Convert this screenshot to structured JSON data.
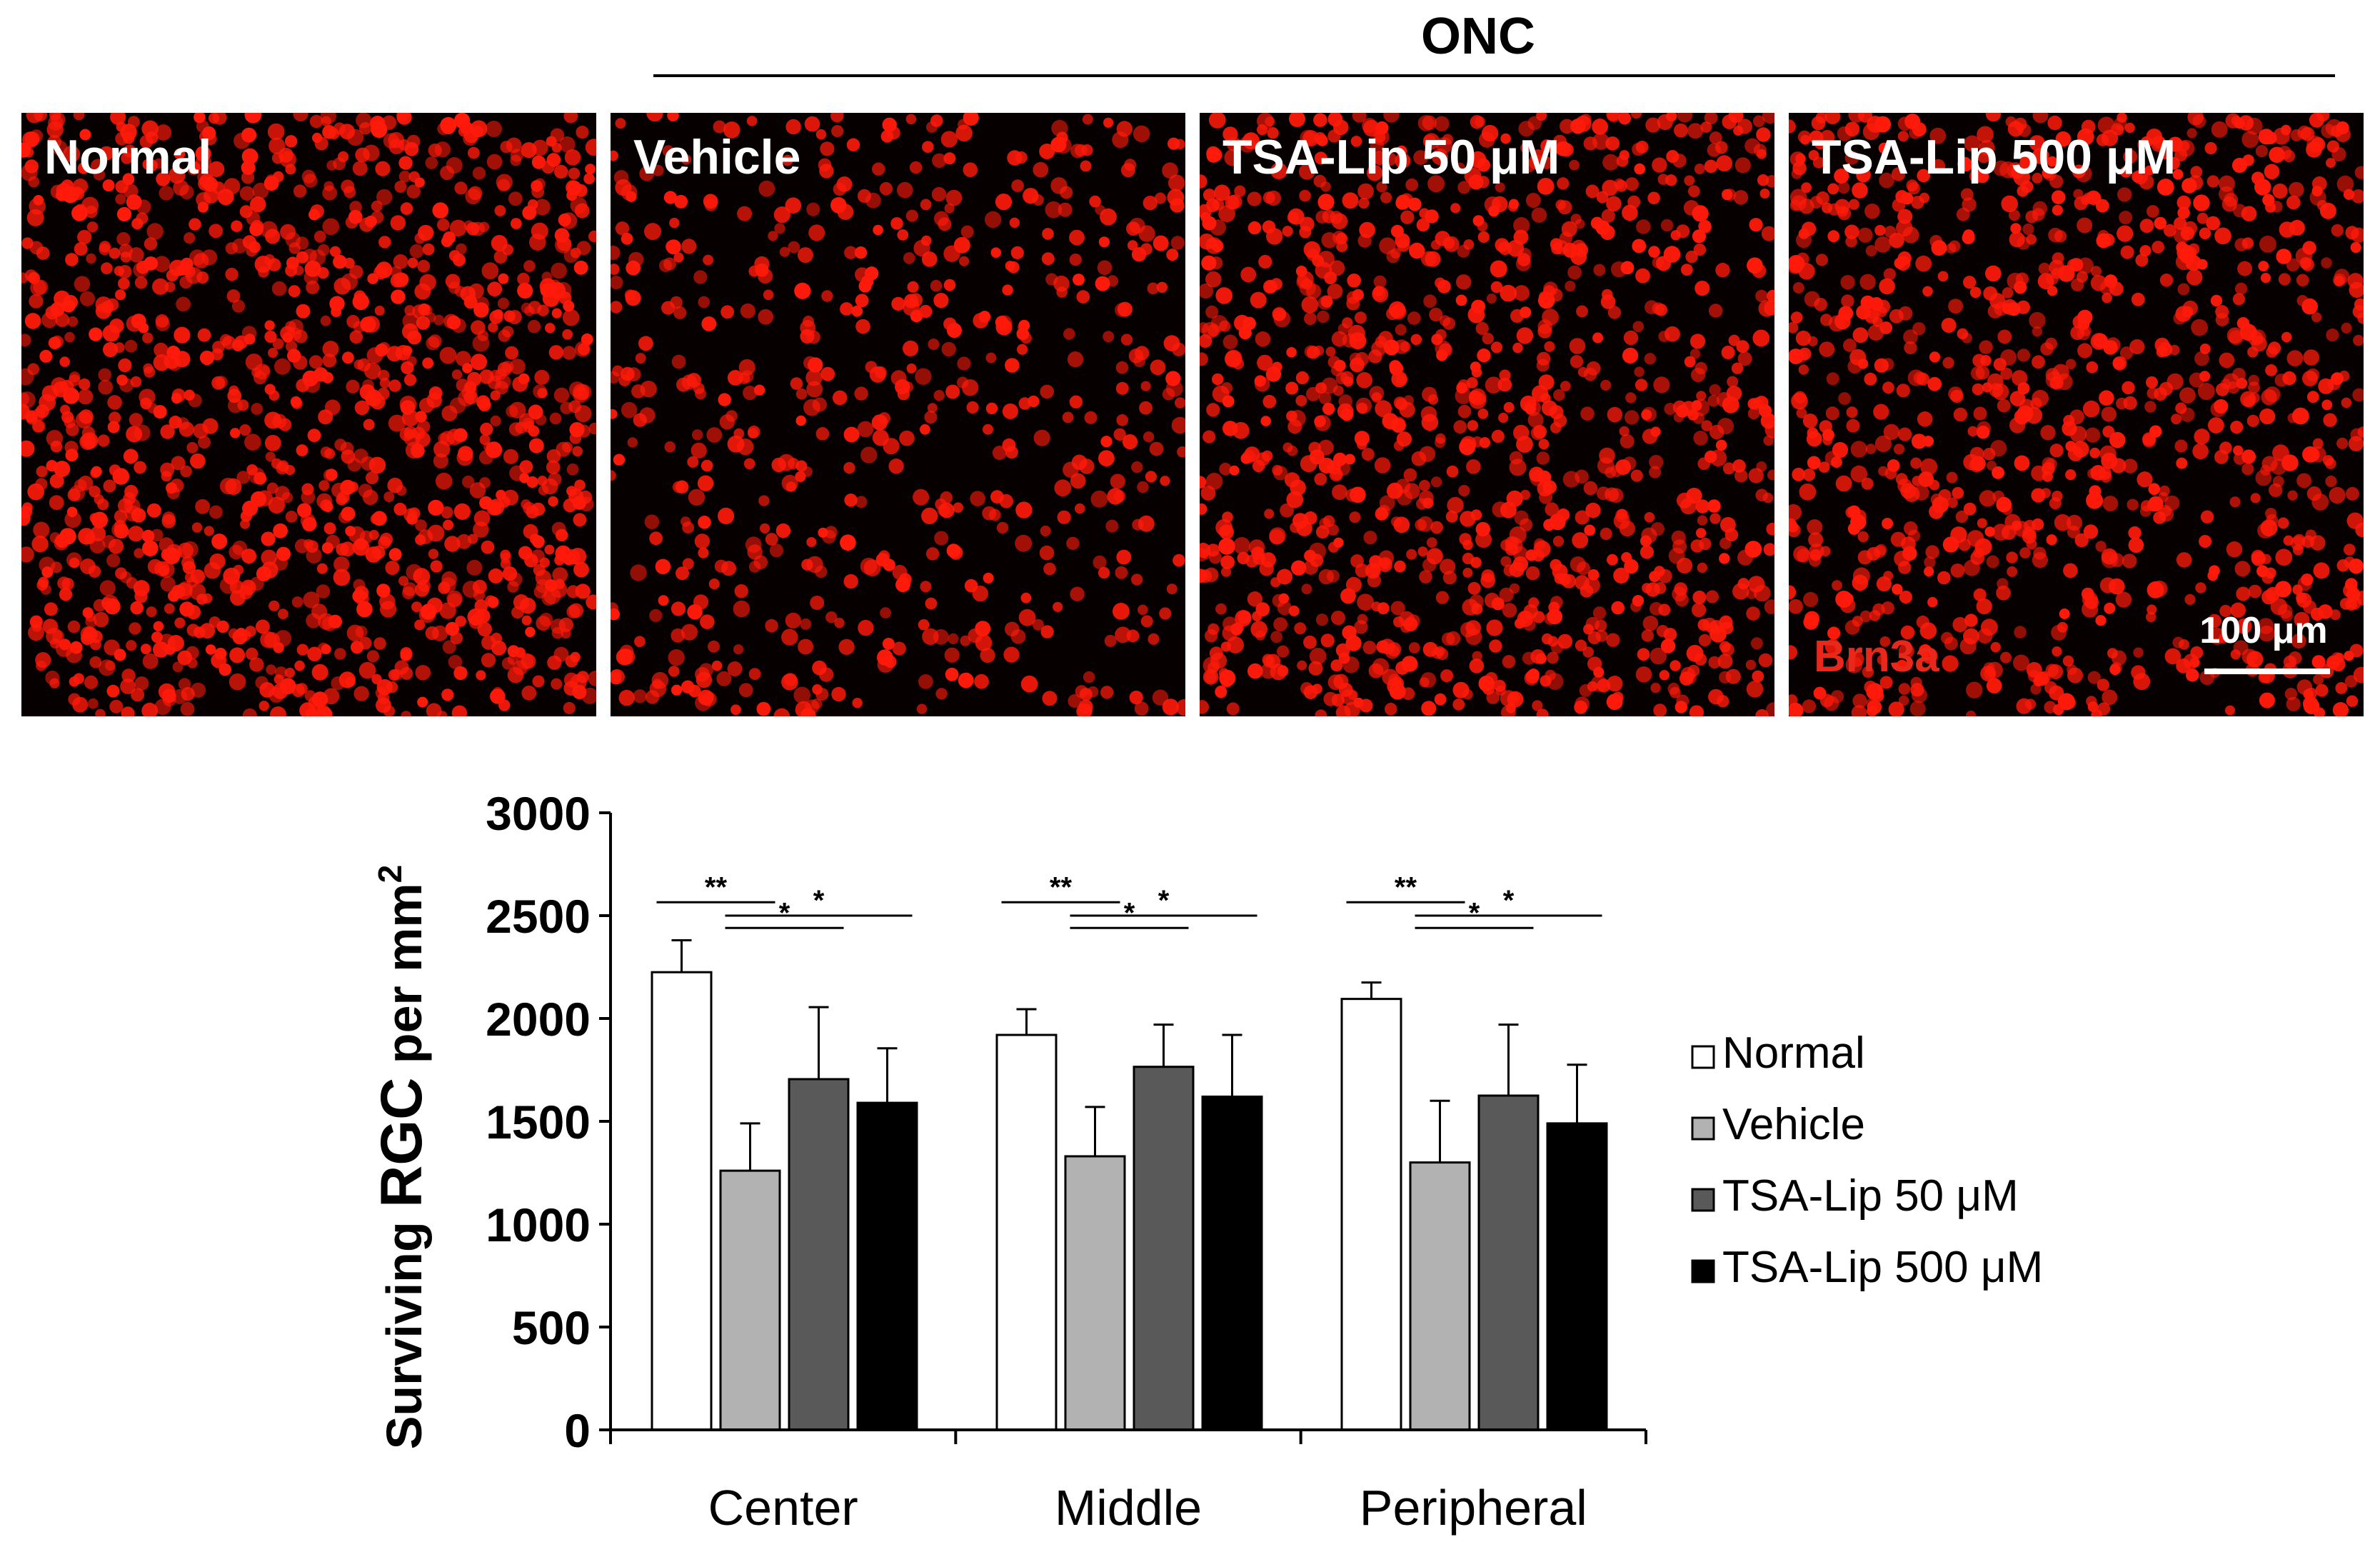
{
  "header": {
    "group_label": "ONC"
  },
  "panels": [
    {
      "label": "Normal",
      "density": 1.0,
      "color": "#ff1a0a"
    },
    {
      "label": "Vehicle",
      "density": 0.45,
      "color": "#ff1a0a"
    },
    {
      "label": "TSA-Lip 50 μM",
      "density": 0.85,
      "color": "#ff1a0a"
    },
    {
      "label": "TSA-Lip 500 μM",
      "density": 0.8,
      "color": "#ff1a0a"
    }
  ],
  "panel_annotations": {
    "stain": "Brn3a",
    "scale_bar": "100 μm"
  },
  "chart_data": {
    "type": "bar",
    "categories": [
      "Center",
      "Middle",
      "Peripheral"
    ],
    "ylabel_main": "Surviving ",
    "ylabel_rgc": "RGC",
    "ylabel_unit": " per mm",
    "ylabel_sup": "2",
    "ylim": [
      0,
      3000
    ],
    "yticks": [
      "0",
      "500",
      "1000",
      "1500",
      "2000",
      "2500",
      "3000"
    ],
    "ytick_values": [
      0,
      500,
      1000,
      1500,
      2000,
      2500,
      3000
    ],
    "legend_position": "right",
    "series": [
      {
        "name": "Normal",
        "color": "#ffffff",
        "values": [
          2225,
          1920,
          2095
        ],
        "errors": [
          155,
          125,
          80
        ]
      },
      {
        "name": "Vehicle",
        "color": "#b2b2b2",
        "values": [
          1260,
          1330,
          1300
        ],
        "errors": [
          230,
          240,
          300
        ]
      },
      {
        "name": "TSA-Lip 50 μM",
        "color": "#595959",
        "values": [
          1705,
          1765,
          1625
        ],
        "errors": [
          350,
          205,
          345
        ]
      },
      {
        "name": "TSA-Lip 500 μM",
        "color": "#000000",
        "values": [
          1590,
          1620,
          1490
        ],
        "errors": [
          265,
          300,
          285
        ]
      }
    ],
    "significance": [
      {
        "category": 0,
        "from": 0,
        "to": 1,
        "label": "**"
      },
      {
        "category": 0,
        "from": 1,
        "to": 2,
        "label": "*"
      },
      {
        "category": 0,
        "from": 1,
        "to": 3,
        "label": "*"
      },
      {
        "category": 1,
        "from": 0,
        "to": 1,
        "label": "**"
      },
      {
        "category": 1,
        "from": 1,
        "to": 2,
        "label": "*"
      },
      {
        "category": 1,
        "from": 1,
        "to": 3,
        "label": "*"
      },
      {
        "category": 2,
        "from": 0,
        "to": 1,
        "label": "**"
      },
      {
        "category": 2,
        "from": 1,
        "to": 2,
        "label": "*"
      },
      {
        "category": 2,
        "from": 1,
        "to": 3,
        "label": "*"
      }
    ]
  }
}
